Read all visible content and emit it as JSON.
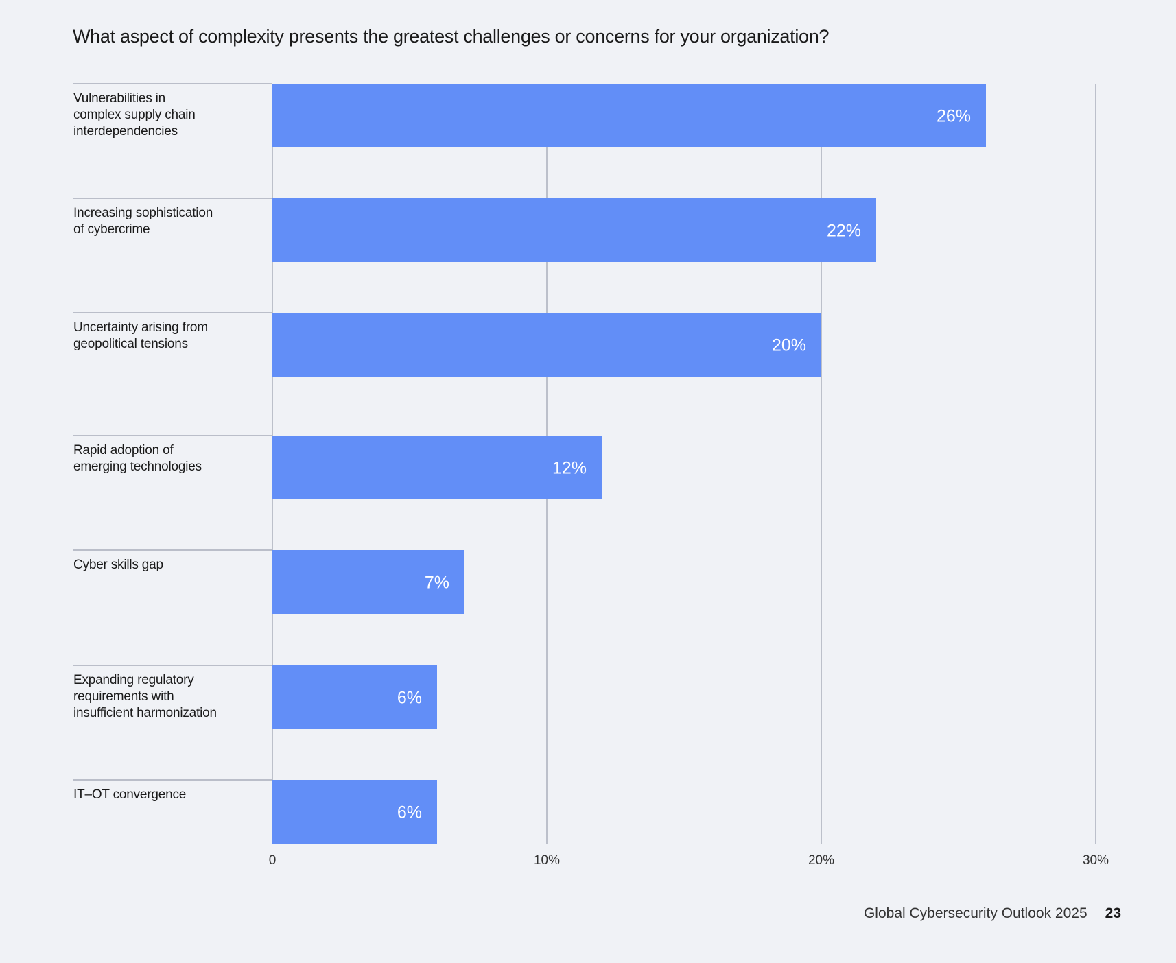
{
  "title": "What aspect of complexity presents the greatest challenges or concerns for your organization?",
  "footer": {
    "publication": "Global Cybersecurity Outlook 2025",
    "page_number": "23"
  },
  "chart_data": {
    "type": "bar",
    "orientation": "horizontal",
    "title": "What aspect of complexity presents the greatest challenges or concerns for your organization?",
    "categories": [
      "Vulnerabilities in\ncomplex supply chain\ninterdependencies",
      "Increasing sophistication\nof cybercrime",
      "Uncertainty arising from\ngeopolitical tensions",
      "Rapid adoption of\nemerging technologies",
      "Cyber skills gap",
      "Expanding regulatory\nrequirements with\ninsufficient harmonization",
      "IT–OT convergence"
    ],
    "values": [
      26,
      22,
      20,
      12,
      7,
      6,
      6
    ],
    "data_labels": [
      "26%",
      "22%",
      "20%",
      "12%",
      "7%",
      "6%",
      "6%"
    ],
    "xlim": [
      0,
      30
    ],
    "x_ticks": [
      0,
      10,
      20,
      30
    ],
    "x_tick_labels": [
      "0",
      "10%",
      "20%",
      "30%"
    ],
    "grid": true,
    "legend": "none",
    "colors": {
      "bar": "#628ef7",
      "gridline": "#9aa0ae",
      "background": "#f0f2f6",
      "data_label": "#ffffff"
    }
  }
}
